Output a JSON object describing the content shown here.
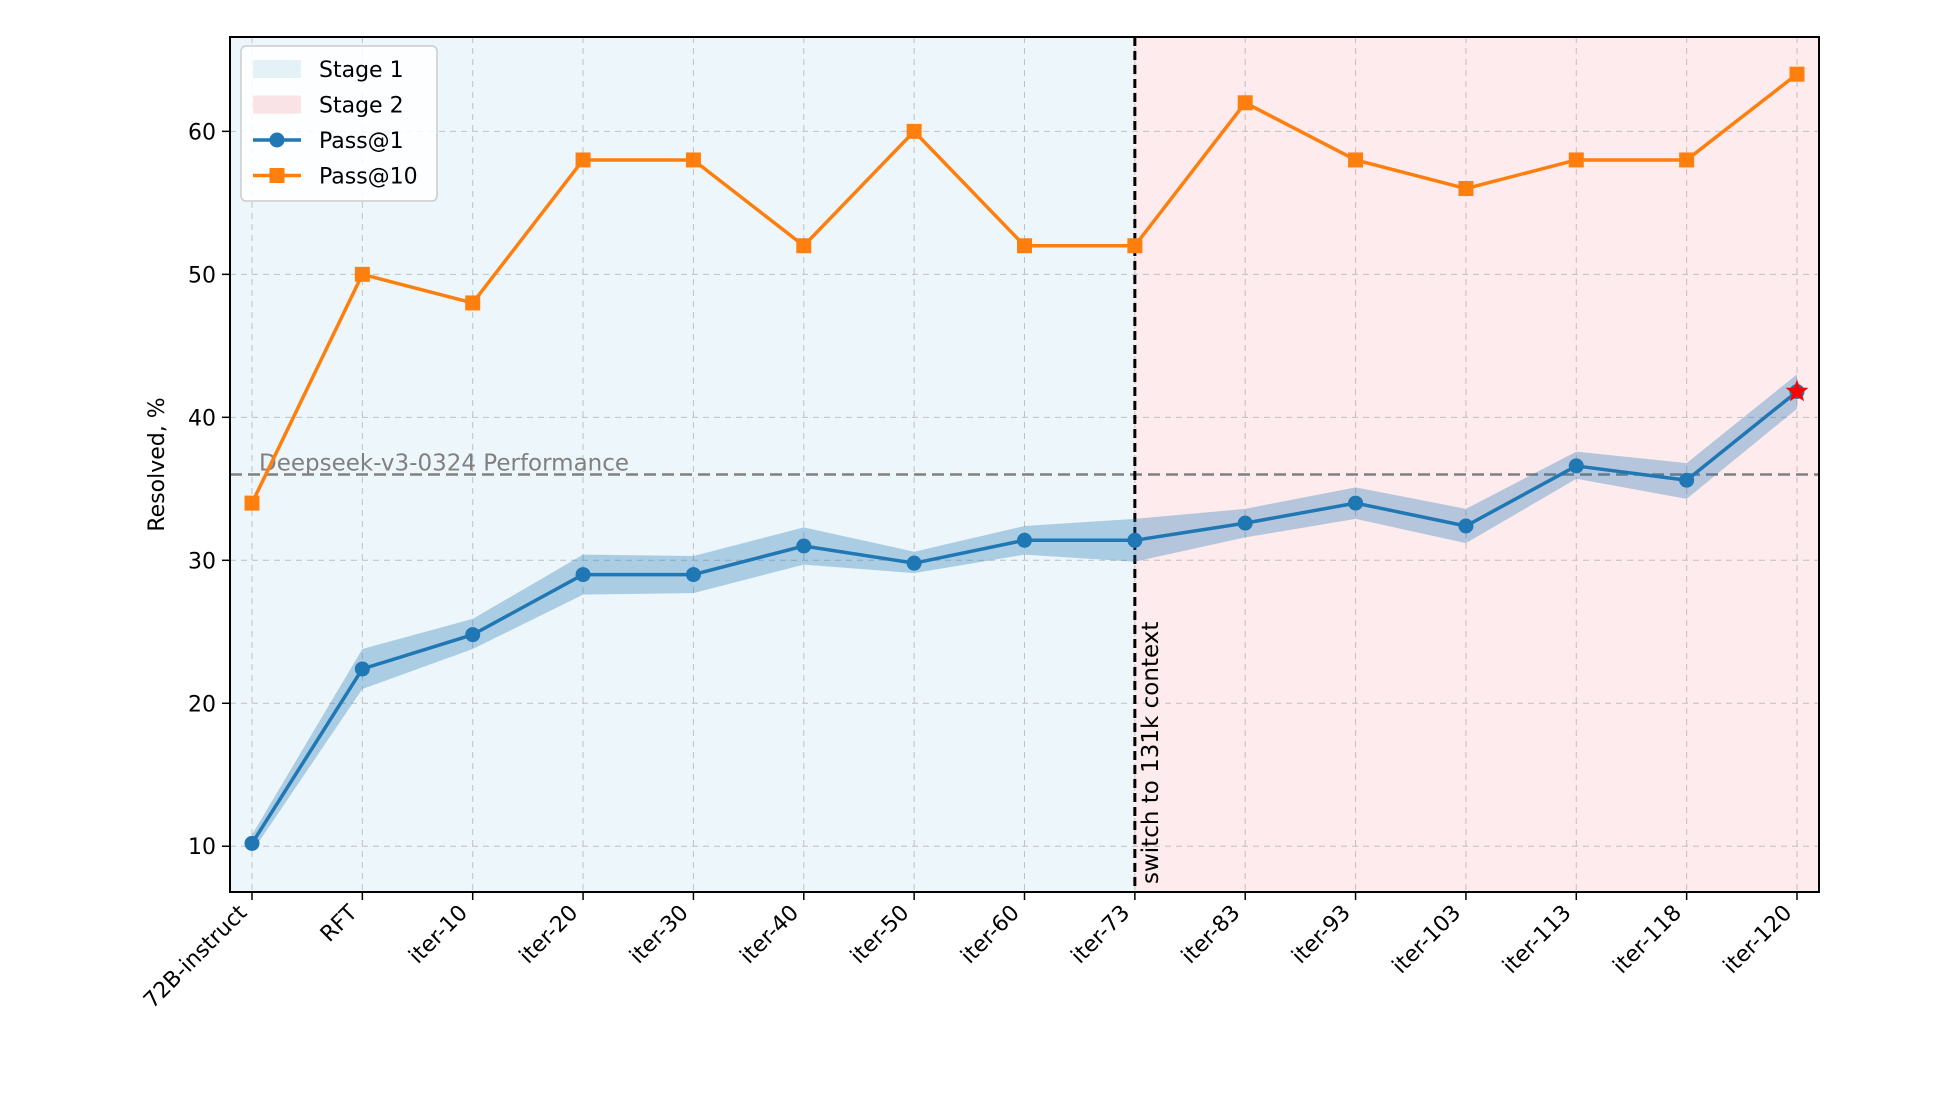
{
  "chart_data": {
    "type": "line",
    "title": "",
    "xlabel": "",
    "ylabel": "Resolved, %",
    "categories": [
      "72B-instruct",
      "RFT",
      "iter-10",
      "iter-20",
      "iter-30",
      "iter-40",
      "iter-50",
      "iter-60",
      "iter-73",
      "iter-83",
      "iter-93",
      "iter-103",
      "iter-113",
      "iter-118",
      "iter-120"
    ],
    "ylim": [
      6.8,
      66.6
    ],
    "yticks": [
      10,
      20,
      30,
      40,
      50,
      60
    ],
    "grid": true,
    "legend_position": "top-left",
    "series": [
      {
        "name": "Pass@1",
        "color": "#1f77b4",
        "marker": "circle",
        "values": [
          10.2,
          22.4,
          24.8,
          29.0,
          29.0,
          31.0,
          29.8,
          31.4,
          31.4,
          32.6,
          34.0,
          32.4,
          36.6,
          35.6,
          41.8
        ],
        "band_lower": [
          9.6,
          21.0,
          23.8,
          27.6,
          27.7,
          29.7,
          29.1,
          30.4,
          29.9,
          31.6,
          32.9,
          31.2,
          35.7,
          34.3,
          40.6
        ],
        "band_upper": [
          10.8,
          23.8,
          25.9,
          30.4,
          30.3,
          32.3,
          30.6,
          32.4,
          32.9,
          33.6,
          35.1,
          33.6,
          37.6,
          36.8,
          43.0
        ]
      },
      {
        "name": "Pass@10",
        "color": "#ff7f0e",
        "marker": "square",
        "values": [
          34,
          50,
          48,
          58,
          58,
          52,
          60,
          52,
          52,
          62,
          58,
          56,
          58,
          58,
          64
        ]
      }
    ],
    "regions": [
      {
        "name": "Stage 1",
        "from_index": 0,
        "to_index": 8,
        "color": "#add8e6"
      },
      {
        "name": "Stage 2",
        "from_index": 8,
        "to_index": 14,
        "color": "#f4a6ad"
      }
    ],
    "reference_line": {
      "label": "Deepseek-v3-0324 Performance",
      "y": 36,
      "color": "#808080"
    },
    "vertical_line": {
      "label": "switch to 131k context",
      "x_index": 8
    },
    "highlight_point": {
      "series": "Pass@1",
      "x_index": 14,
      "marker": "star",
      "color": "#ff0000"
    }
  }
}
